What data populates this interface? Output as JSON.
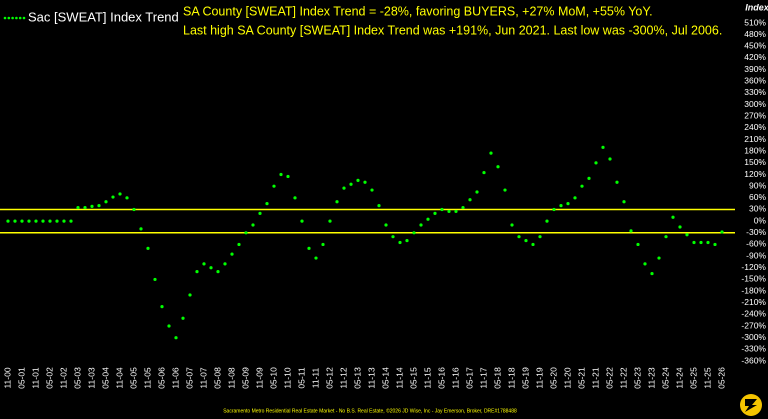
{
  "chart_data": {
    "type": "line",
    "legend_label": "Sac [SWEAT] Index Trend",
    "annotations": [
      "SA County [SWEAT] Index Trend = -28%, favoring BUYERS, +27% MoM, +55% YoY.",
      "Last high SA County [SWEAT] Index Trend was +191%, Jun 2021. Last low was -300%, Jul 2006."
    ],
    "y_axis_label": "Index",
    "footer": "Sacramento Metro Residential Real Estate Market - No B.S. Real Estate, ©2026 JD Wise, Inc - Jay Emerson, Broker, DRE#1788488",
    "background": "#000000",
    "color": "#00ff00",
    "ref_lines": [
      30,
      -30
    ],
    "ref_color": "#ffff00",
    "categories": [
      "11-00",
      null,
      "05-01",
      null,
      "11-01",
      null,
      "05-02",
      null,
      "11-02",
      null,
      "05-03",
      null,
      "11-03",
      null,
      "05-04",
      null,
      "11-04",
      null,
      "05-05",
      null,
      "11-05",
      null,
      "05-06",
      null,
      "11-06",
      null,
      "05-07",
      null,
      "11-07",
      null,
      "05-08",
      null,
      "11-08",
      null,
      "05-09",
      null,
      "11-09",
      null,
      "05-10",
      null,
      "11-10",
      null,
      "05-11",
      null,
      "11-11",
      null,
      "05-12",
      null,
      "11-12",
      null,
      "05-13",
      null,
      "11-13",
      null,
      "05-14",
      null,
      "11-14",
      null,
      "05-15",
      null,
      "11-15",
      null,
      "05-16",
      null,
      "11-16",
      null,
      "05-17",
      null,
      "11-17",
      null,
      "05-18",
      null,
      "11-18",
      null,
      "05-19",
      null,
      "11-19",
      null,
      "05-20",
      null,
      "11-20",
      null,
      "05-21",
      null,
      "11-21",
      null,
      "05-22",
      null,
      "11-22",
      null,
      "05-23",
      null,
      "11-23",
      null,
      "05-24",
      null,
      "11-24",
      null,
      "05-25",
      null,
      "11-25",
      null,
      "05-26"
    ],
    "values": [
      0,
      0,
      0,
      0,
      0,
      0,
      0,
      0,
      0,
      0,
      35,
      35,
      38,
      40,
      50,
      62,
      70,
      60,
      30,
      -20,
      -70,
      -150,
      -220,
      -270,
      -300,
      -250,
      -190,
      -130,
      -110,
      -120,
      -130,
      -110,
      -85,
      -60,
      -30,
      -10,
      20,
      45,
      90,
      120,
      115,
      60,
      0,
      -70,
      -95,
      -60,
      0,
      50,
      85,
      95,
      105,
      100,
      80,
      40,
      -10,
      -40,
      -55,
      -50,
      -30,
      -10,
      5,
      20,
      30,
      25,
      25,
      35,
      55,
      75,
      125,
      175,
      140,
      80,
      -10,
      -40,
      -50,
      -60,
      -40,
      0,
      30,
      40,
      45,
      60,
      90,
      110,
      150,
      190,
      160,
      100,
      50,
      -25,
      -60,
      -110,
      -135,
      -95,
      -40,
      10,
      -15,
      -35,
      -55,
      -55,
      -55,
      -60,
      -28
    ],
    "ylim": [
      -360,
      510
    ],
    "yticks": [
      {
        "value": 510,
        "label": "510%"
      },
      {
        "value": 480,
        "label": "480%"
      },
      {
        "value": 450,
        "label": "450%"
      },
      {
        "value": 420,
        "label": "420%"
      },
      {
        "value": 390,
        "label": "390%"
      },
      {
        "value": 360,
        "label": "360%"
      },
      {
        "value": 330,
        "label": "330%"
      },
      {
        "value": 300,
        "label": "300%"
      },
      {
        "value": 270,
        "label": "270%"
      },
      {
        "value": 240,
        "label": "240%"
      },
      {
        "value": 210,
        "label": "210%"
      },
      {
        "value": 180,
        "label": "180%"
      },
      {
        "value": 150,
        "label": "150%"
      },
      {
        "value": 120,
        "label": "120%"
      },
      {
        "value": 90,
        "label": "90%"
      },
      {
        "value": 60,
        "label": "60%"
      },
      {
        "value": 30,
        "label": "30%"
      },
      {
        "value": 0,
        "label": "0%"
      },
      {
        "value": -30,
        "label": "-30%"
      },
      {
        "value": -60,
        "label": "-60%"
      },
      {
        "value": -90,
        "label": "-90%"
      },
      {
        "value": -120,
        "label": "-120%"
      },
      {
        "value": -150,
        "label": "-150%"
      },
      {
        "value": -180,
        "label": "-180%"
      },
      {
        "value": -210,
        "label": "-210%"
      },
      {
        "value": -240,
        "label": "-240%"
      },
      {
        "value": -270,
        "label": "-270%"
      },
      {
        "value": -300,
        "label": "-300%"
      },
      {
        "value": -330,
        "label": "-330%"
      },
      {
        "value": -360,
        "label": "-360%"
      }
    ],
    "grid": false
  }
}
